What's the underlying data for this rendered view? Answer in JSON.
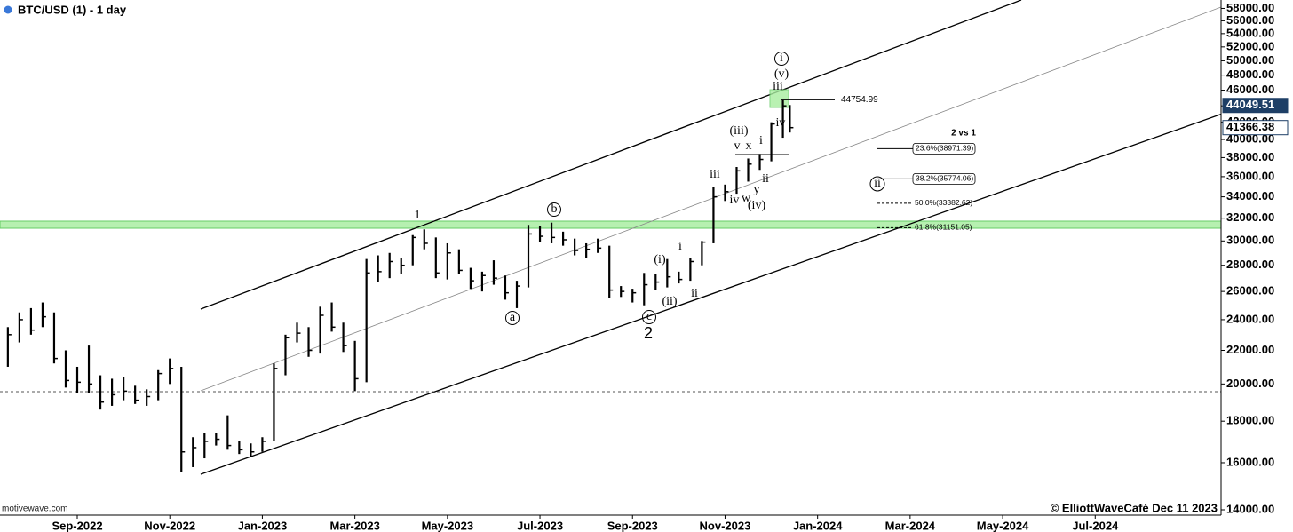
{
  "chart_data": {
    "type": "ohlc",
    "title": "BTC/USD (1) - 1 day",
    "source": "motivewave.com",
    "footer": "© ElliottWaveCafé Dec 11 2023",
    "log_scale": true,
    "color": "#000000",
    "xlim": [
      -1.67,
      24.72
    ],
    "xticks": [
      {
        "value": 0,
        "label": "Sep-2022"
      },
      {
        "value": 2,
        "label": "Nov-2022"
      },
      {
        "value": 4,
        "label": "Jan-2023"
      },
      {
        "value": 6,
        "label": "Mar-2023"
      },
      {
        "value": 8,
        "label": "May-2023"
      },
      {
        "value": 10,
        "label": "Jul-2023"
      },
      {
        "value": 12,
        "label": "Sep-2023"
      },
      {
        "value": 14,
        "label": "Nov-2023"
      },
      {
        "value": 16,
        "label": "Jan-2024"
      },
      {
        "value": 18,
        "label": "Mar-2024"
      },
      {
        "value": 20,
        "label": "May-2024"
      },
      {
        "value": 22,
        "label": "Jul-2024"
      }
    ],
    "ylim": [
      13860,
      59400
    ],
    "yticks": [
      {
        "value": 14000,
        "label": "14000.00"
      },
      {
        "value": 16000,
        "label": "16000.00"
      },
      {
        "value": 18000,
        "label": "18000.00"
      },
      {
        "value": 20000,
        "label": "20000.00"
      },
      {
        "value": 22000,
        "label": "22000.00"
      },
      {
        "value": 24000,
        "label": "24000.00"
      },
      {
        "value": 26000,
        "label": "26000.00"
      },
      {
        "value": 28000,
        "label": "28000.00"
      },
      {
        "value": 30000,
        "label": "30000.00"
      },
      {
        "value": 32000,
        "label": "32000.00"
      },
      {
        "value": 34000,
        "label": "34000.00"
      },
      {
        "value": 36000,
        "label": "36000.00"
      },
      {
        "value": 38000,
        "label": "38000.00"
      },
      {
        "value": 40000,
        "label": "40000.00"
      },
      {
        "value": 42000,
        "label": "42000.00"
      },
      {
        "value": 44000,
        "label": "44000.00"
      },
      {
        "value": 46000,
        "label": "46000.00"
      },
      {
        "value": 48000,
        "label": "48000.00"
      },
      {
        "value": 50000,
        "label": "50000.00"
      },
      {
        "value": 52000,
        "label": "52000.00"
      },
      {
        "value": 54000,
        "label": "54000.00"
      },
      {
        "value": 56000,
        "label": "56000.00"
      },
      {
        "value": 58000,
        "label": "58000.00"
      }
    ],
    "x": [
      -1.5,
      -1.25,
      -1,
      -0.75,
      -0.5,
      -0.25,
      0,
      0.25,
      0.5,
      0.75,
      1,
      1.25,
      1.5,
      1.75,
      2,
      2.25,
      2.5,
      2.75,
      3,
      3.25,
      3.5,
      3.75,
      4,
      4.25,
      4.5,
      4.75,
      5,
      5.25,
      5.5,
      5.75,
      6,
      6.25,
      6.5,
      6.75,
      7,
      7.25,
      7.5,
      7.75,
      8,
      8.25,
      8.5,
      8.75,
      9,
      9.25,
      9.5,
      9.75,
      10,
      10.25,
      10.5,
      10.75,
      11,
      11.25,
      11.5,
      11.75,
      12,
      12.25,
      12.5,
      12.75,
      13,
      13.25,
      13.5,
      13.75,
      14,
      14.25,
      14.5,
      14.75,
      15,
      15.25,
      15.4
    ],
    "high": [
      23500,
      24500,
      24800,
      25200,
      24500,
      22000,
      21000,
      22300,
      20500,
      20300,
      20400,
      19900,
      19700,
      20800,
      21500,
      21000,
      17200,
      17400,
      17400,
      18300,
      17000,
      16900,
      17200,
      21200,
      23000,
      23800,
      23500,
      24900,
      25200,
      23800,
      22600,
      28500,
      28800,
      29000,
      28600,
      30500,
      31000,
      30300,
      29800,
      29300,
      27800,
      27500,
      28400,
      27200,
      26800,
      31400,
      31300,
      31600,
      30800,
      30200,
      29800,
      30200,
      29600,
      26400,
      26200,
      27400,
      27300,
      28500,
      27500,
      28600,
      30000,
      35000,
      35200,
      37000,
      37900,
      38400,
      42000,
      44700,
      44100
    ],
    "low": [
      21000,
      22500,
      23000,
      23500,
      21200,
      19800,
      19500,
      19500,
      18600,
      18800,
      19100,
      18900,
      18800,
      19100,
      20000,
      15600,
      15800,
      16200,
      16800,
      16600,
      16400,
      16300,
      16500,
      17000,
      20500,
      22500,
      21600,
      21800,
      23200,
      21900,
      19600,
      20100,
      26700,
      27000,
      27300,
      28000,
      29300,
      27000,
      26900,
      27300,
      26200,
      26000,
      26500,
      25400,
      24800,
      26300,
      29900,
      29800,
      29600,
      28800,
      28600,
      29000,
      25500,
      25600,
      25200,
      25000,
      26100,
      26300,
      26600,
      26800,
      28000,
      29800,
      33600,
      34300,
      35500,
      36700,
      37600,
      40200,
      40800
    ],
    "close": [
      23000,
      24000,
      23300,
      24200,
      21500,
      20200,
      20100,
      20000,
      19000,
      19400,
      19600,
      19100,
      19300,
      20600,
      20900,
      16500,
      16700,
      17000,
      17100,
      16800,
      16600,
      16500,
      17000,
      20900,
      22800,
      23100,
      22000,
      24300,
      23500,
      22300,
      20300,
      27400,
      27500,
      28300,
      28000,
      30300,
      29800,
      27400,
      29000,
      27600,
      26800,
      27200,
      27000,
      25900,
      26400,
      30600,
      30400,
      30300,
      30100,
      29200,
      29300,
      29400,
      26100,
      26000,
      25900,
      26500,
      26700,
      27100,
      26900,
      28300,
      29900,
      34000,
      34500,
      36600,
      37300,
      37800,
      41800,
      44000,
      41366.38
    ],
    "reference_line": 19570,
    "level": 44754.99,
    "price_labels": [
      44049.51,
      41366.38
    ],
    "fib_levels": [
      {
        "label": "23.6%(38971.39)",
        "value": 38971.39
      },
      {
        "label": "38.2%(35774.06)",
        "value": 35774.06
      },
      {
        "label": "50.0%(33382.62)",
        "value": 33382.62
      },
      {
        "label": "61.8%(31151.05)",
        "value": 31151.05
      }
    ],
    "annotations": [
      "1",
      "2",
      "b",
      "a",
      "c",
      "i",
      "(v)",
      "iii",
      "iv",
      "(iii)",
      "v",
      "x",
      "iii",
      "iv",
      "w",
      "y",
      "ii",
      "i",
      "(iv)",
      "(i)",
      "i",
      "(ii)",
      "ii",
      "ii",
      "2 vs 1"
    ]
  }
}
